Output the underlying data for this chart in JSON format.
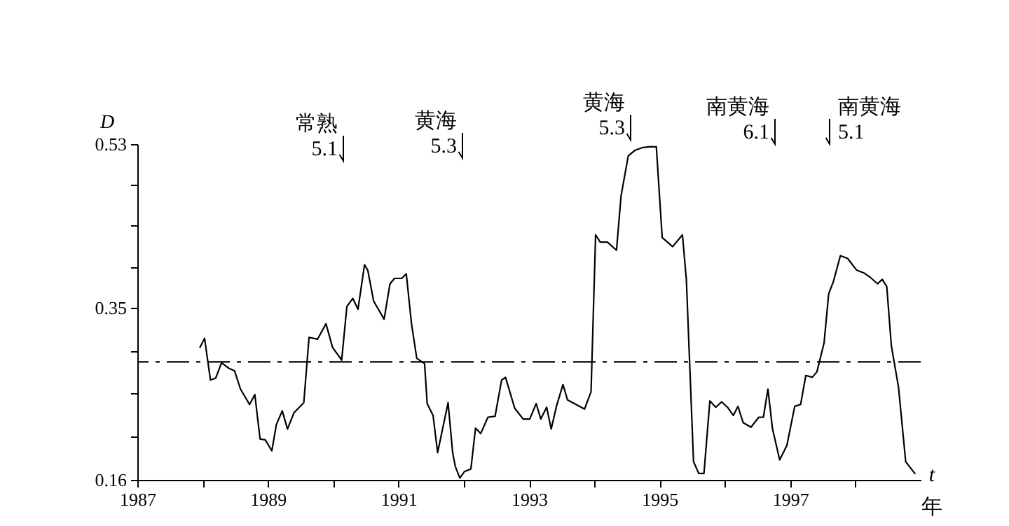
{
  "chart_data": {
    "type": "line",
    "xlabel": "t\n年",
    "ylabel": "D",
    "xlim": [
      1987,
      1999
    ],
    "xticks": [
      1987,
      {
        "value": 1988,
        "label": null
      },
      1989,
      {
        "value": 1990,
        "label": null
      },
      1991,
      {
        "value": 1992,
        "label": null
      },
      1993,
      {
        "value": 1994,
        "label": null
      },
      1995,
      {
        "value": 1996,
        "label": null
      },
      1997,
      {
        "value": 1998,
        "label": null
      }
    ],
    "ylim": [
      0.16,
      0.53
    ],
    "yticks": [
      0.16,
      {
        "value": 0.2075,
        "label": null
      },
      {
        "value": 0.255,
        "label": null
      },
      {
        "value": 0.3025,
        "label": null
      },
      0.35,
      {
        "value": 0.395,
        "label": null
      },
      {
        "value": 0.44,
        "label": null
      },
      {
        "value": 0.485,
        "label": null
      },
      0.53
    ],
    "x": [
      1987.96,
      1988.03,
      1988.12,
      1988.2,
      1988.29,
      1988.4,
      1988.49,
      1988.58,
      1988.72,
      1988.8,
      1988.88,
      1988.96,
      1989.06,
      1989.13,
      1989.22,
      1989.3,
      1989.4,
      1989.55,
      1989.63,
      1989.76,
      1989.89,
      1989.99,
      1990.13,
      1990.21,
      1990.3,
      1990.38,
      1990.48,
      1990.53,
      1990.62,
      1990.78,
      1990.87,
      1990.94,
      1991.05,
      1991.12,
      1991.2,
      1991.28,
      1991.4,
      1991.44,
      1991.53,
      1991.6,
      1991.76,
      1991.83,
      1991.87,
      1991.94,
      1992.01,
      1992.11,
      1992.18,
      1992.26,
      1992.37,
      1992.48,
      1992.58,
      1992.64,
      1992.78,
      1992.91,
      1993.01,
      1993.11,
      1993.18,
      1993.27,
      1993.34,
      1993.42,
      1993.52,
      1993.59,
      1993.85,
      1993.95,
      1994.02,
      1994.09,
      1994.2,
      1994.34,
      1994.41,
      1994.52,
      1994.62,
      1994.73,
      1994.84,
      1994.95,
      1995.04,
      1995.2,
      1995.35,
      1995.41,
      1995.52,
      1995.6,
      1995.68,
      1995.77,
      1995.86,
      1995.95,
      1996.04,
      1996.13,
      1996.2,
      1996.28,
      1996.4,
      1996.52,
      1996.59,
      1996.66,
      1996.73,
      1996.84,
      1996.95,
      1997.07,
      1997.16,
      1997.24,
      1997.34,
      1997.41,
      1997.52,
      1997.59,
      1997.66,
      1997.77,
      1997.88,
      1998.02,
      1998.13,
      1998.23,
      1998.34,
      1998.41,
      1998.48,
      1998.55,
      1998.66,
      1998.77,
      1998.91
    ],
    "series": [
      {
        "color": "#000000",
        "values": [
          0.306,
          0.316,
          0.27,
          0.272,
          0.289,
          0.283,
          0.28,
          0.26,
          0.243,
          0.254,
          0.205,
          0.204,
          0.192,
          0.221,
          0.236,
          0.216,
          0.234,
          0.245,
          0.317,
          0.315,
          0.332,
          0.306,
          0.292,
          0.351,
          0.36,
          0.348,
          0.397,
          0.391,
          0.357,
          0.337,
          0.376,
          0.382,
          0.382,
          0.387,
          0.332,
          0.294,
          0.288,
          0.244,
          0.231,
          0.19,
          0.245,
          0.19,
          0.175,
          0.162,
          0.169,
          0.172,
          0.217,
          0.211,
          0.229,
          0.23,
          0.27,
          0.273,
          0.239,
          0.227,
          0.227,
          0.244,
          0.227,
          0.24,
          0.216,
          0.241,
          0.265,
          0.248,
          0.238,
          0.257,
          0.43,
          0.422,
          0.422,
          0.413,
          0.473,
          0.517,
          0.523,
          0.526,
          0.527,
          0.527,
          0.427,
          0.417,
          0.43,
          0.381,
          0.18,
          0.167,
          0.167,
          0.247,
          0.24,
          0.246,
          0.24,
          0.231,
          0.241,
          0.223,
          0.218,
          0.229,
          0.229,
          0.26,
          0.216,
          0.182,
          0.198,
          0.241,
          0.243,
          0.275,
          0.273,
          0.279,
          0.311,
          0.365,
          0.378,
          0.407,
          0.404,
          0.391,
          0.388,
          0.383,
          0.376,
          0.381,
          0.373,
          0.308,
          0.262,
          0.18,
          0.167
        ]
      }
    ],
    "ref_lines": [
      {
        "axis": "y",
        "value": 0.29,
        "line_style": "dashed"
      }
    ],
    "annotations": [
      "常熟 5.1",
      "黄海 5.3",
      "黄海 5.3",
      "南黄海 6.1",
      "南黄海 5.1"
    ]
  }
}
